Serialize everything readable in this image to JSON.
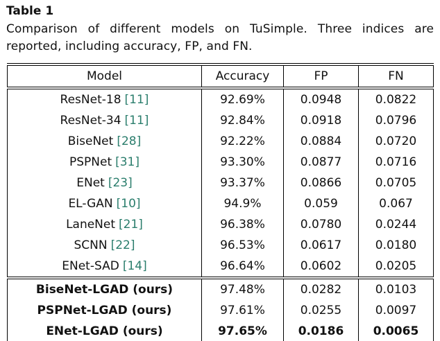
{
  "caption": {
    "label": "Table 1",
    "body": "Comparison of different models on TuSimple.  Three indices are reported, including accuracy, FP, and FN."
  },
  "table": {
    "headers": [
      "Model",
      "Accuracy",
      "FP",
      "FN"
    ],
    "rows": [
      {
        "model": "ResNet-18",
        "cite": "[11]",
        "accuracy": "92.69%",
        "fp": "0.0948",
        "fn": "0.0822"
      },
      {
        "model": "ResNet-34",
        "cite": "[11]",
        "accuracy": "92.84%",
        "fp": "0.0918",
        "fn": "0.0796"
      },
      {
        "model": "BiseNet",
        "cite": "[28]",
        "accuracy": "92.22%",
        "fp": "0.0884",
        "fn": "0.0720"
      },
      {
        "model": "PSPNet",
        "cite": "[31]",
        "accuracy": "93.30%",
        "fp": "0.0877",
        "fn": "0.0716"
      },
      {
        "model": "ENet",
        "cite": "[23]",
        "accuracy": "93.37%",
        "fp": "0.0866",
        "fn": "0.0705"
      },
      {
        "model": "EL-GAN",
        "cite": "[10]",
        "accuracy": "94.9%",
        "fp": "0.059",
        "fn": "0.067"
      },
      {
        "model": "LaneNet",
        "cite": "[21]",
        "accuracy": "96.38%",
        "fp": "0.0780",
        "fn": "0.0244"
      },
      {
        "model": "SCNN",
        "cite": "[22]",
        "accuracy": "96.53%",
        "fp": "0.0617",
        "fn": "0.0180"
      },
      {
        "model": "ENet-SAD",
        "cite": "[14]",
        "accuracy": "96.64%",
        "fp": "0.0602",
        "fn": "0.0205"
      },
      {
        "model": "BiseNet-LGAD (ours)",
        "cite": "",
        "accuracy": "97.48%",
        "fp": "0.0282",
        "fn": "0.0103"
      },
      {
        "model": "PSPNet-LGAD (ours)",
        "cite": "",
        "accuracy": "97.61%",
        "fp": "0.0255",
        "fn": "0.0097"
      },
      {
        "model": "ENet-LGAD (ours)",
        "cite": "",
        "accuracy": "97.65%",
        "fp": "0.0186",
        "fn": "0.0065"
      }
    ]
  },
  "colors": {
    "citation": "#2a7d6c",
    "text": "#111111",
    "background": "#ffffff"
  }
}
